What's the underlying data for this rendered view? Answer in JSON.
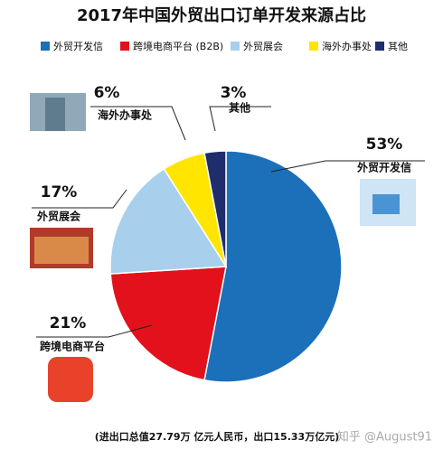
{
  "chart_data": {
    "type": "pie",
    "title": "2017年中国外贸出口订单开发来源占比",
    "categories": [
      "外贸开发信",
      "跨境电商平台 (B2B)",
      "外贸展会",
      "海外办事处",
      "其他"
    ],
    "callout_labels": [
      "外贸开发信",
      "跨境电商平台",
      "外贸展会",
      "海外办事处",
      "其他"
    ],
    "values": [
      53,
      21,
      17,
      6,
      3
    ],
    "value_labels": [
      "53%",
      "21%",
      "17%",
      "6%",
      "3%"
    ],
    "colors": [
      "#1c6fb9",
      "#e2111c",
      "#a8cfec",
      "#ffe500",
      "#1f2d6c"
    ],
    "footnote": "(进出口总值27.79万 亿元人民币，出口15.33万亿元)",
    "watermark": "知乎 @August91"
  }
}
